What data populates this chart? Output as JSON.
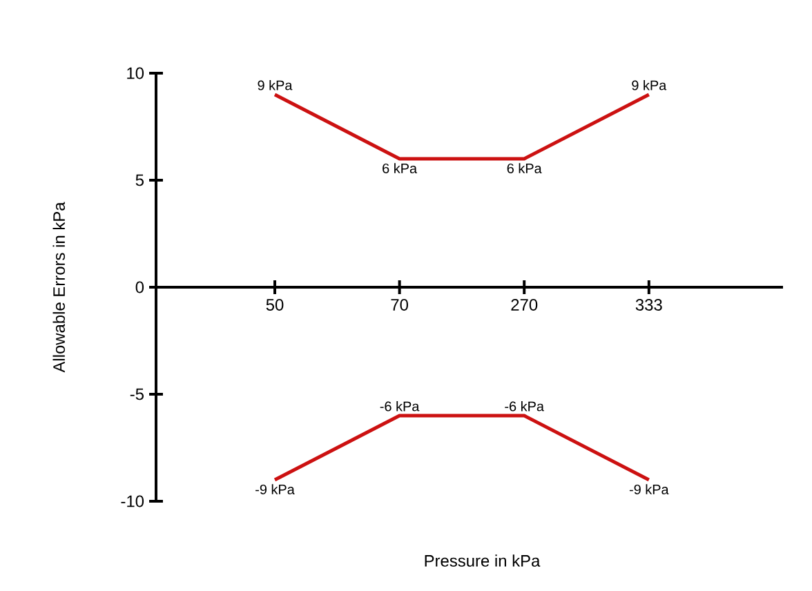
{
  "chart_data": {
    "type": "line",
    "xlabel": "Pressure in kPa",
    "ylabel": "Allowable Errors in kPa",
    "categories": [
      "50",
      "70",
      "270",
      "333"
    ],
    "series": [
      {
        "color": "#cc1111",
        "values": [
          9,
          6,
          6,
          9
        ],
        "value_labels": [
          "9 kPa",
          "6 kPa",
          "6 kPa",
          "9 kPa"
        ]
      },
      {
        "color": "#cc1111",
        "values": [
          -9,
          -6,
          -6,
          -9
        ],
        "value_labels": [
          "-9 kPa",
          "-6 kPa",
          "-6 kPa",
          "-9 kPa"
        ]
      }
    ],
    "ylim": [
      -10,
      10
    ],
    "yticks": [
      -10,
      -5,
      0,
      5,
      10
    ],
    "grid": false,
    "legend": false,
    "marker": "none",
    "line_style": "solid"
  }
}
